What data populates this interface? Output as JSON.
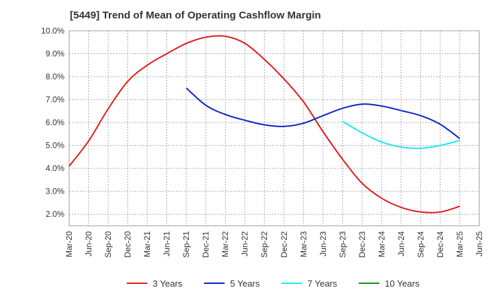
{
  "chart_data": {
    "type": "line",
    "title": "[5449]  Trend of Mean of Operating Cashflow Margin",
    "xlabel": "",
    "ylabel": "",
    "x_ticks": [
      "Mar-20",
      "Jun-20",
      "Sep-20",
      "Dec-20",
      "Mar-21",
      "Jun-21",
      "Sep-21",
      "Dec-21",
      "Mar-22",
      "Jun-22",
      "Sep-22",
      "Dec-22",
      "Mar-23",
      "Jun-23",
      "Sep-23",
      "Dec-23",
      "Mar-24",
      "Jun-24",
      "Sep-24",
      "Dec-24",
      "Mar-25",
      "Jun-25"
    ],
    "y_ticks": [
      "2.0%",
      "3.0%",
      "4.0%",
      "5.0%",
      "6.0%",
      "7.0%",
      "8.0%",
      "9.0%",
      "10.0%"
    ],
    "ylim": [
      1.5,
      10.0
    ],
    "grid": true,
    "legend_position": "bottom",
    "series": [
      {
        "name": "3 Years",
        "color": "#e31a1c",
        "x": [
          "Mar-20",
          "Jun-20",
          "Sep-20",
          "Dec-20",
          "Mar-21",
          "Jun-21",
          "Sep-21",
          "Dec-21",
          "Mar-22",
          "Jun-22",
          "Sep-22",
          "Dec-22",
          "Mar-23",
          "Jun-23",
          "Sep-23",
          "Dec-23",
          "Mar-24",
          "Jun-24",
          "Sep-24",
          "Dec-24",
          "Mar-25"
        ],
        "values": [
          4.1,
          5.2,
          6.6,
          7.8,
          8.5,
          9.0,
          9.45,
          9.72,
          9.76,
          9.45,
          8.75,
          7.9,
          6.9,
          5.6,
          4.4,
          3.35,
          2.7,
          2.3,
          2.1,
          2.1,
          2.35
        ]
      },
      {
        "name": "5 Years",
        "color": "#0b24c4",
        "x": [
          "Sep-21",
          "Dec-21",
          "Mar-22",
          "Jun-22",
          "Sep-22",
          "Dec-22",
          "Mar-23",
          "Jun-23",
          "Sep-23",
          "Dec-23",
          "Mar-24",
          "Jun-24",
          "Sep-24",
          "Dec-24",
          "Mar-25"
        ],
        "values": [
          7.5,
          6.75,
          6.35,
          6.1,
          5.9,
          5.83,
          5.97,
          6.3,
          6.62,
          6.8,
          6.72,
          6.52,
          6.3,
          5.92,
          5.3
        ]
      },
      {
        "name": "7 Years",
        "color": "#1ee8ef",
        "x": [
          "Sep-23",
          "Dec-23",
          "Mar-24",
          "Jun-24",
          "Sep-24",
          "Dec-24",
          "Mar-25"
        ],
        "values": [
          6.05,
          5.55,
          5.15,
          4.93,
          4.88,
          5.0,
          5.22
        ]
      },
      {
        "name": "10 Years",
        "color": "#1a8a1a",
        "x": [],
        "values": []
      }
    ]
  }
}
